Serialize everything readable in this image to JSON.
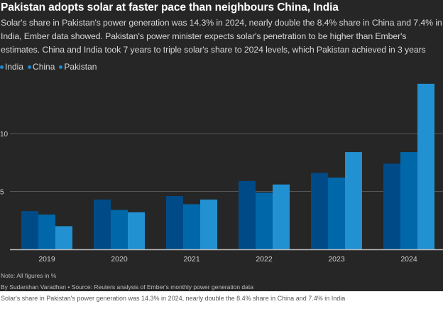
{
  "header": {
    "title": "Pakistan adopts solar at faster pace than neighbours China, India",
    "subtitle": "Solar's share in Pakistan's power generation was 14.3% in 2024, nearly double the 8.4% share in China and 7.4% in India, Ember data showed. Pakistan's power minister expects solar's penetration to be higher than Ember's estimates. China and India took 7 years to triple solar's share to 2024 levels, which Pakistan achieved in 3 years"
  },
  "footer": {
    "note": "Note: All figures in %",
    "byline": "By Sudarshan Varadhan • Source: Reuters analysis of Ember's monthly power generation data",
    "caption": "Solar's share in Pakistan's power generation was 14.3% in 2024, nearly double the 8.4% share in China and 7.4% in India"
  },
  "colors": {
    "background": "#262626",
    "gridline": "#555555",
    "axis": "#bbbbbb",
    "tick_text": "#cfcfcf"
  },
  "chart_data": {
    "type": "bar",
    "title": "Pakistan adopts solar at faster pace than neighbours China, India",
    "xlabel": "",
    "ylabel": "",
    "categories": [
      "2019",
      "2020",
      "2021",
      "2022",
      "2023",
      "2024"
    ],
    "series": [
      {
        "name": "India",
        "color": "#004b87",
        "values": [
          3.3,
          4.3,
          4.6,
          5.9,
          6.6,
          7.4
        ]
      },
      {
        "name": "China",
        "color": "#0067a9",
        "values": [
          3.0,
          3.4,
          3.9,
          4.9,
          6.2,
          8.4
        ]
      },
      {
        "name": "Pakistan",
        "color": "#2191d2",
        "values": [
          2.0,
          3.2,
          4.3,
          5.6,
          8.4,
          14.3
        ]
      }
    ],
    "ylim": [
      0,
      15
    ],
    "yticks": [
      5,
      10
    ],
    "grid": true,
    "legend": "top-left",
    "units": "%"
  }
}
